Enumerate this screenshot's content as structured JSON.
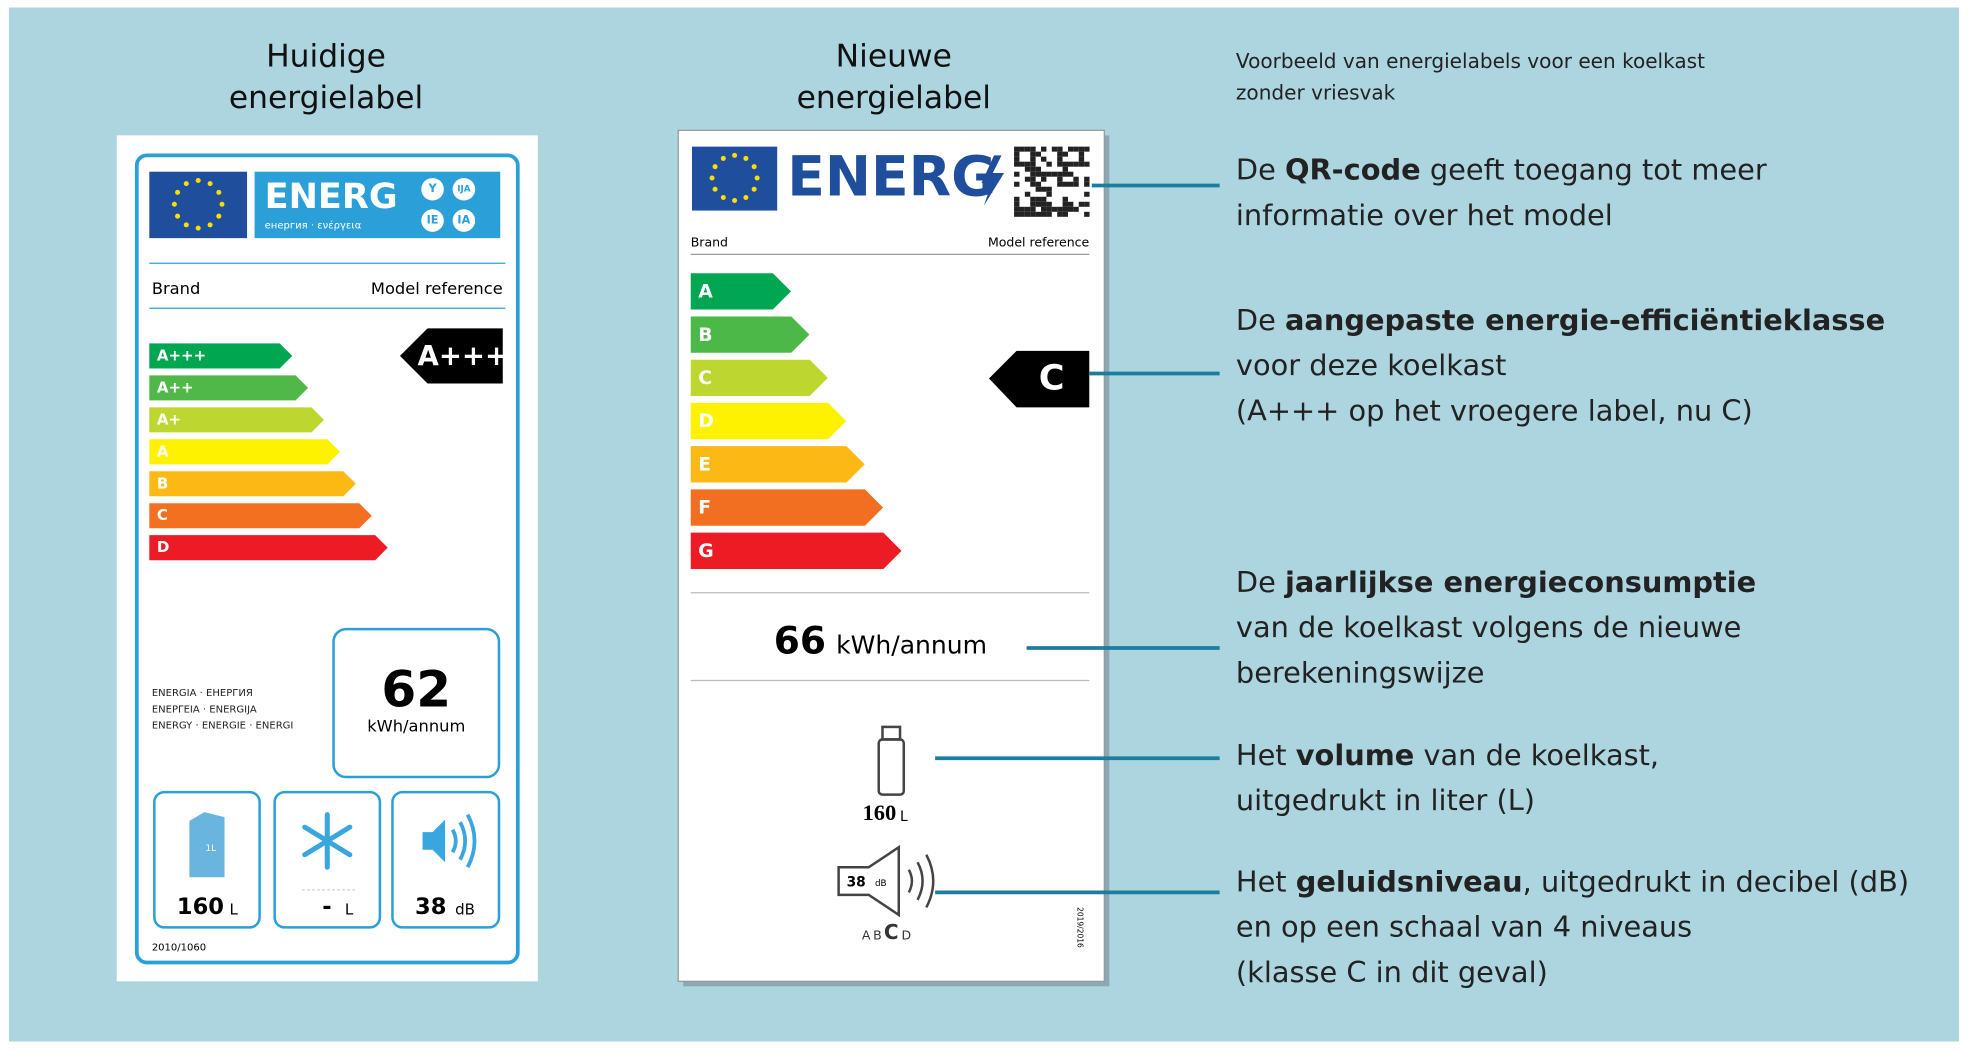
{
  "old_label": {
    "heading": [
      "Huidige",
      "energielabel"
    ],
    "energy_word": "ENERG",
    "energy_sub": "енергия · ενέργεια",
    "badges": [
      "Y",
      "IJA",
      "IE",
      "IA"
    ],
    "brand": "Brand",
    "model": "Model reference",
    "classes": [
      "A+++",
      "A++",
      "A+",
      "A",
      "B",
      "C",
      "D"
    ],
    "colors": [
      "#00a650",
      "#50b848",
      "#bed630",
      "#fff200",
      "#fdb913",
      "#f37021",
      "#ed1c24"
    ],
    "rating": "A+++",
    "multilingual": [
      "ENERGIA · ЕНЕРГИЯ",
      "ΕΝΕΡΓΕΙΑ · ENERGIJA",
      "ENERGY · ENERGIE · ENERGI"
    ],
    "consumption": 62,
    "consumption_unit": "kWh/annum",
    "carton_text": "1L",
    "volume": 160,
    "volume_unit": "L",
    "freezer": "-",
    "freezer_unit": "L",
    "noise": 38,
    "noise_unit": "dB",
    "regulation": "2010/1060"
  },
  "new_label": {
    "heading": [
      "Nieuwe",
      "energielabel"
    ],
    "energy_word": "ENERG",
    "brand": "Brand",
    "model": "Model reference",
    "classes": [
      "A",
      "B",
      "C",
      "D",
      "E",
      "F",
      "G"
    ],
    "colors": [
      "#00a651",
      "#4cb848",
      "#bed630",
      "#fff200",
      "#fcb814",
      "#f26f21",
      "#ed1c24"
    ],
    "rating": "C",
    "consumption": 66,
    "consumption_unit": "kWh/annum",
    "volume": 160,
    "volume_unit": "L",
    "noise": 38,
    "noise_unit": "dB",
    "noise_classes": [
      "A",
      "B",
      "C",
      "D"
    ],
    "regulation": "2019/2016"
  },
  "caption": [
    "Voorbeeld van energielabels voor een koelkast",
    "zonder vriesvak"
  ],
  "annotations": [
    {
      "lines": [
        [
          {
            "text": "De "
          },
          {
            "text": "QR-code",
            "bold": true
          },
          {
            "text": " geeft toegang tot meer"
          }
        ],
        [
          {
            "text": "informatie over het model"
          }
        ]
      ]
    },
    {
      "lines": [
        [
          {
            "text": "De "
          },
          {
            "text": "aangepaste energie-efficiëntieklasse",
            "bold": true
          }
        ],
        [
          {
            "text": "voor deze koelkast"
          }
        ],
        [
          {
            "text": "(A+++ op het vroegere label, nu C)"
          }
        ]
      ]
    },
    {
      "lines": [
        [
          {
            "text": "De "
          },
          {
            "text": "jaarlijkse energieconsumptie",
            "bold": true
          }
        ],
        [
          {
            "text": "van de koelkast volgens de nieuwe"
          }
        ],
        [
          {
            "text": "berekeningswijze"
          }
        ]
      ]
    },
    {
      "lines": [
        [
          {
            "text": "Het "
          },
          {
            "text": "volume",
            "bold": true
          },
          {
            "text": " van de koelkast,"
          }
        ],
        [
          {
            "text": "uitgedrukt in liter (L)"
          }
        ]
      ]
    },
    {
      "lines": [
        [
          {
            "text": "Het "
          },
          {
            "text": "geluidsniveau",
            "bold": true
          },
          {
            "text": ", uitgedrukt in decibel (dB)"
          }
        ],
        [
          {
            "text": "en op een schaal van 4 niveaus"
          }
        ],
        [
          {
            "text": "(klasse C in dit geval)"
          }
        ]
      ]
    }
  ]
}
